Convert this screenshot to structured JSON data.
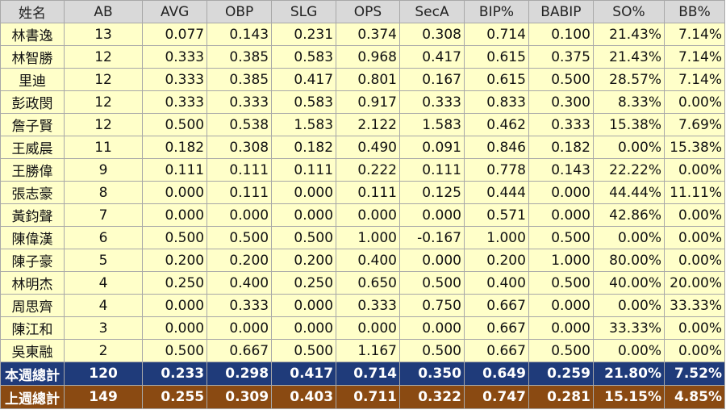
{
  "colors": {
    "header_bg": "#d9d9d9",
    "row_bg": "#ffffc9",
    "this_week_bg": "#1f3b7a",
    "last_week_bg": "#8a4a12"
  },
  "table": {
    "headers": [
      "姓名",
      "AB",
      "AVG",
      "OBP",
      "SLG",
      "OPS",
      "SecA",
      "BIP%",
      "BABIP",
      "SO%",
      "BB%"
    ],
    "rows": [
      [
        "林書逸",
        "13",
        "0.077",
        "0.143",
        "0.231",
        "0.374",
        "0.308",
        "0.714",
        "0.100",
        "21.43%",
        "7.14%"
      ],
      [
        "林智勝",
        "12",
        "0.333",
        "0.385",
        "0.583",
        "0.968",
        "0.417",
        "0.615",
        "0.375",
        "21.43%",
        "7.14%"
      ],
      [
        "里迪",
        "12",
        "0.333",
        "0.385",
        "0.417",
        "0.801",
        "0.167",
        "0.615",
        "0.500",
        "28.57%",
        "7.14%"
      ],
      [
        "彭政閔",
        "12",
        "0.333",
        "0.333",
        "0.583",
        "0.917",
        "0.333",
        "0.833",
        "0.300",
        "8.33%",
        "0.00%"
      ],
      [
        "詹子賢",
        "12",
        "0.500",
        "0.538",
        "1.583",
        "2.122",
        "1.583",
        "0.462",
        "0.333",
        "15.38%",
        "7.69%"
      ],
      [
        "王威晨",
        "11",
        "0.182",
        "0.308",
        "0.182",
        "0.490",
        "0.091",
        "0.846",
        "0.182",
        "0.00%",
        "15.38%"
      ],
      [
        "王勝偉",
        "9",
        "0.111",
        "0.111",
        "0.111",
        "0.222",
        "0.111",
        "0.778",
        "0.143",
        "22.22%",
        "0.00%"
      ],
      [
        "張志豪",
        "8",
        "0.000",
        "0.111",
        "0.000",
        "0.111",
        "0.125",
        "0.444",
        "0.000",
        "44.44%",
        "11.11%"
      ],
      [
        "黃鈞聲",
        "7",
        "0.000",
        "0.000",
        "0.000",
        "0.000",
        "0.000",
        "0.571",
        "0.000",
        "42.86%",
        "0.00%"
      ],
      [
        "陳偉漢",
        "6",
        "0.500",
        "0.500",
        "0.500",
        "1.000",
        "-0.167",
        "1.000",
        "0.500",
        "0.00%",
        "0.00%"
      ],
      [
        "陳子豪",
        "5",
        "0.200",
        "0.200",
        "0.200",
        "0.400",
        "0.000",
        "0.200",
        "1.000",
        "80.00%",
        "0.00%"
      ],
      [
        "林明杰",
        "4",
        "0.250",
        "0.400",
        "0.250",
        "0.650",
        "0.500",
        "0.400",
        "0.500",
        "40.00%",
        "20.00%"
      ],
      [
        "周思齊",
        "4",
        "0.000",
        "0.333",
        "0.000",
        "0.333",
        "0.750",
        "0.667",
        "0.000",
        "0.00%",
        "33.33%"
      ],
      [
        "陳江和",
        "3",
        "0.000",
        "0.000",
        "0.000",
        "0.000",
        "0.000",
        "0.667",
        "0.000",
        "33.33%",
        "0.00%"
      ],
      [
        "吳東融",
        "2",
        "0.500",
        "0.667",
        "0.500",
        "1.167",
        "0.500",
        "0.667",
        "0.500",
        "0.00%",
        "0.00%"
      ]
    ],
    "totals": [
      {
        "key": "this-week",
        "color_key": "this_week_bg",
        "cells": [
          "本週總計",
          "120",
          "0.233",
          "0.298",
          "0.417",
          "0.714",
          "0.350",
          "0.649",
          "0.259",
          "21.80%",
          "7.52%"
        ]
      },
      {
        "key": "last-week",
        "color_key": "last_week_bg",
        "cells": [
          "上週總計",
          "149",
          "0.255",
          "0.309",
          "0.403",
          "0.711",
          "0.322",
          "0.747",
          "0.281",
          "15.15%",
          "4.85%"
        ]
      }
    ]
  }
}
